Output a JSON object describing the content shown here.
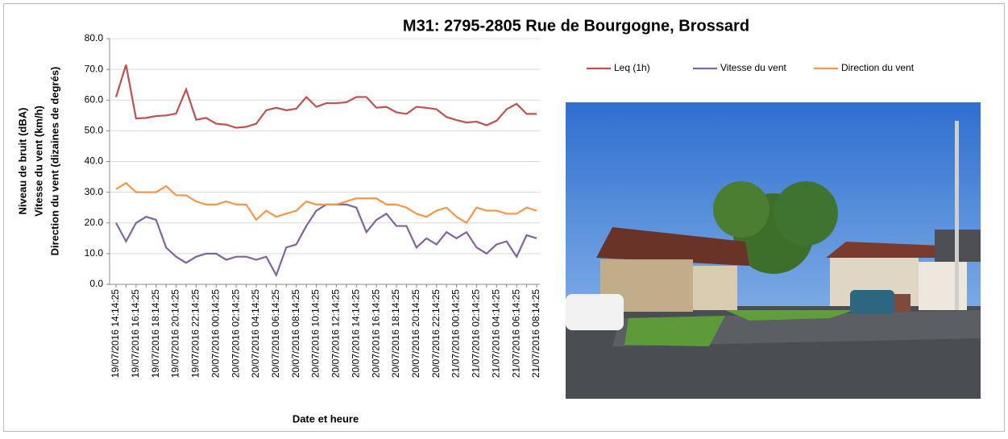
{
  "chart_data": {
    "type": "line",
    "title": "M31: 2795-2805 Rue de Bourgogne, Brossard",
    "y_label": [
      "Niveau de bruit (dBA)",
      "Vitesse du vent (km/h)",
      "Direction du vent (dizaines de degrés)"
    ],
    "x_label": "Date et heure",
    "categories": [
      "19/07/2016 14:14:25",
      null,
      "19/07/2016 16:14:25",
      null,
      "19/07/2016 18:14:25",
      null,
      "19/07/2016 20:14:25",
      null,
      "19/07/2016 22:14:25",
      null,
      "20/07/2016 00:14:25",
      null,
      "20/07/2016 02:14:25",
      null,
      "20/07/2016 04:14:25",
      null,
      "20/07/2016 06:14:25",
      null,
      "20/07/2016 08:14:25",
      null,
      "20/07/2016 10:14:25",
      null,
      "20/07/2016 12:14:25",
      null,
      "20/07/2016 14:14:25",
      null,
      "20/07/2016 16:14:25",
      null,
      "20/07/2016 18:14:25",
      null,
      "20/07/2016 20:14:25",
      null,
      "20/07/2016 22:14:25",
      null,
      "21/07/2016 00:14:25",
      null,
      "21/07/2016 02:14:25",
      null,
      "21/07/2016 04:14:25",
      null,
      "21/07/2016 06:14:25",
      null,
      "21/07/2016 08:14:25"
    ],
    "series": [
      {
        "name": "Leq (1h)",
        "color": "#c0504d",
        "values": [
          61,
          71.5,
          54,
          54.2,
          54.8,
          55,
          55.6,
          63.5,
          53.6,
          54.2,
          52.3,
          52,
          51,
          51.3,
          52.3,
          56.7,
          57.5,
          56.7,
          57.2,
          61,
          57.8,
          59,
          59,
          59.3,
          61,
          61,
          57.5,
          57.8,
          56,
          55.5,
          57.8,
          57.5,
          57,
          54.5,
          53.5,
          52.7,
          53,
          51.8,
          53.3,
          57,
          58.8,
          55.5,
          55.5
        ]
      },
      {
        "name": "Vitesse du vent",
        "color": "#8064a2",
        "values": [
          20,
          14,
          20,
          22,
          21,
          12,
          9,
          7,
          9,
          10,
          10,
          8,
          9,
          9,
          8,
          9,
          3,
          12,
          13,
          19,
          24,
          26,
          26,
          26,
          25,
          17,
          21,
          23,
          19,
          19,
          12,
          15,
          13,
          17,
          15,
          17,
          12,
          10,
          13,
          14,
          9,
          16,
          15
        ]
      },
      {
        "name": "Direction du vent",
        "color": "#f79646",
        "values": [
          31,
          33,
          30,
          30,
          30,
          32,
          29,
          29,
          27,
          26,
          26,
          27,
          26,
          26,
          21,
          24,
          22,
          23,
          24,
          27,
          26,
          26,
          26,
          27,
          28,
          28,
          28,
          26,
          26,
          25,
          23,
          22,
          24,
          25,
          22,
          20,
          25,
          24,
          24,
          23,
          23,
          25,
          24
        ]
      }
    ],
    "ylim": [
      0,
      80
    ],
    "yticks": [
      {
        "value": 0,
        "label": "0.0"
      },
      {
        "value": 10,
        "label": "10.0"
      },
      {
        "value": 20,
        "label": "20.0"
      },
      {
        "value": 30,
        "label": "30.0"
      },
      {
        "value": 40,
        "label": "40.0"
      },
      {
        "value": 50,
        "label": "50.0"
      },
      {
        "value": 60,
        "label": "60.0"
      },
      {
        "value": 70,
        "label": "70.0"
      },
      {
        "value": 80,
        "label": "80.0"
      }
    ],
    "grid": true,
    "legend": "top-right"
  }
}
